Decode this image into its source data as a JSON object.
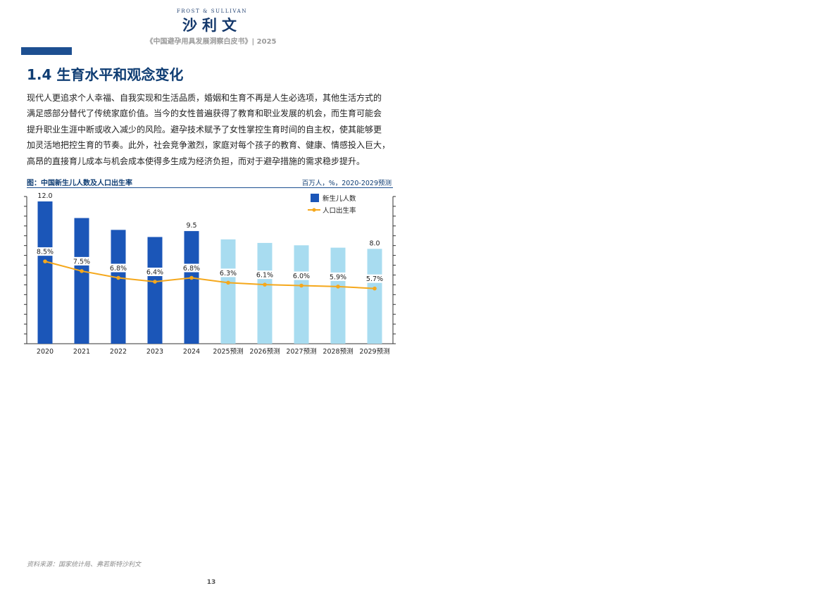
{
  "header": {
    "logo_en": "FROST & SULLIVAN",
    "logo_cn": "沙利文",
    "report_title": "《中国避孕用具发展洞察白皮书》| 2025"
  },
  "section": {
    "heading": "1.4 生育水平和观念变化",
    "paragraph_lines": [
      "现代人更追求个人幸福、自我实现和生活品质，婚姻和生育不再是人生必选项，其他生活方式的",
      "满足感部分替代了传统家庭价值。当今的女性普遍获得了教育和职业发展的机会，而生育可能会",
      "提升职业生涯中断或收入减少的风险。避孕技术赋予了女性掌控生育时间的自主权，使其能够更",
      "加灵活地把控生育的节奏。此外，社会竞争激烈，家庭对每个孩子的教育、健康、情感投入巨大，",
      "高昂的直接育儿成本与机会成本使得多生成为经济负担，而对于避孕措施的需求稳步提升。"
    ]
  },
  "chart_caption": "图：中国新生儿人数及人口出生率",
  "chart_units": "百万人，%，2020-2029预测",
  "chart_data": {
    "type": "bar",
    "categories": [
      "2020",
      "2021",
      "2022",
      "2023",
      "2024",
      "2025预测",
      "2026预测",
      "2027预测",
      "2028预测",
      "2029预测"
    ],
    "series": [
      {
        "name": "新生儿人数",
        "type": "bar",
        "values": [
          12.0,
          10.6,
          9.6,
          9.0,
          9.5,
          8.8,
          8.5,
          8.3,
          8.1,
          8.0
        ],
        "value_labels": [
          "12.0",
          "",
          "",
          "",
          "9.5",
          "",
          "",
          "",
          "",
          "8.0"
        ],
        "color_actual": "#1b56b8",
        "color_forecast": "#a8dcf0"
      },
      {
        "name": "人口出生率",
        "type": "line",
        "values": [
          8.5,
          7.5,
          6.8,
          6.4,
          6.8,
          6.3,
          6.1,
          6.0,
          5.9,
          5.7
        ],
        "value_labels": [
          "8.5%",
          "7.5%",
          "6.8%",
          "6.4%",
          "6.8%",
          "6.3%",
          "6.1%",
          "6.0%",
          "5.9%",
          "5.7%"
        ],
        "color": "#f5a81c"
      }
    ],
    "forecast_from_index": 5,
    "left_axis_max": 12.0,
    "right_axis_max": 15.2,
    "left_ticks": 15,
    "right_ticks": 15,
    "grid": false,
    "legend": "top-right"
  },
  "footer": {
    "source": "资料来源：国家统计局、弗若斯特沙利文",
    "page_number": "13"
  }
}
